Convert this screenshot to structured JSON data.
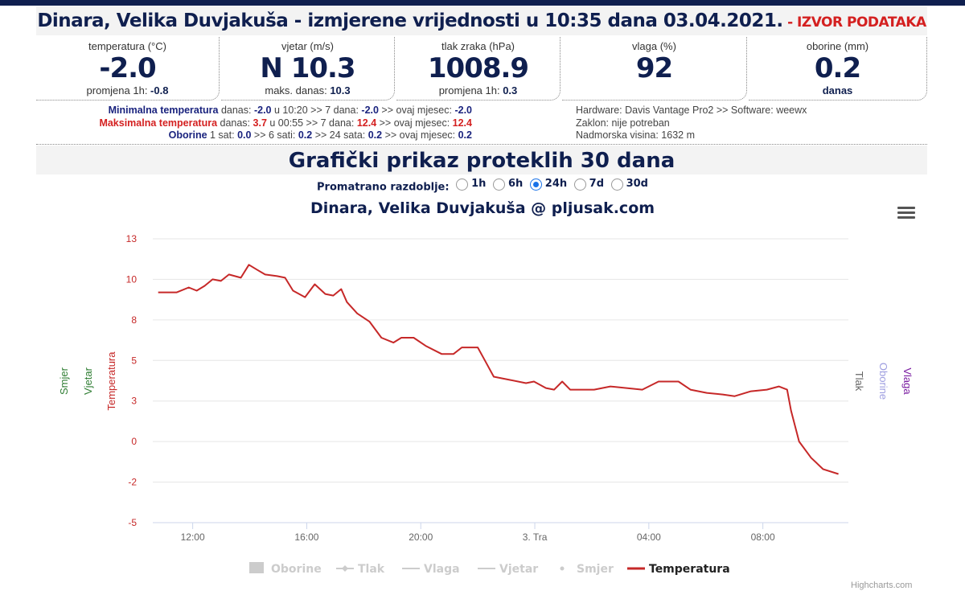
{
  "header": {
    "station": "Dinara, Velika Duvjakuša",
    "measured": " - izmjerene vrijednosti u 10:35 dana 03.04.2021.",
    "source_link": " - IZVOR PODATAKA"
  },
  "boxes": [
    {
      "label": "temperatura (°C)",
      "value": "-2.0",
      "sub_label": "promjena 1h: ",
      "sub_value": "-0.8"
    },
    {
      "label": "vjetar (m/s)",
      "value": "N 10.3",
      "sub_label": "maks. danas: ",
      "sub_value": "10.3"
    },
    {
      "label": "tlak zraka (hPa)",
      "value": "1008.9",
      "sub_label": "promjena 1h: ",
      "sub_value": "0.3"
    },
    {
      "label": "vlaga (%)",
      "value": "92",
      "sub_label": "",
      "sub_value": ""
    },
    {
      "label": "oborine (mm)",
      "value": "0.2",
      "sub_label": "",
      "sub_value": "danas"
    }
  ],
  "stats": {
    "min": {
      "label": "Minimalna temperatura",
      "t1": " danas: ",
      "v1": "-2.0",
      "t2": " u 10:20 >> 7 dana: ",
      "v2": "-2.0",
      "t3": " >> ovaj mjesec: ",
      "v3": "-2.0"
    },
    "max": {
      "label": "Maksimalna temperatura",
      "t1": " danas: ",
      "v1": "3.7",
      "t2": " u 00:55 >> 7 dana: ",
      "v2": "12.4",
      "t3": " >> ovaj mjesec: ",
      "v3": "12.4"
    },
    "rain": {
      "label": "Oborine",
      "t1": " 1 sat: ",
      "v1": "0.0",
      "t2": " >> 6 sati: ",
      "v2": "0.2",
      "t3": " >> 24 sata: ",
      "v3": "0.2",
      "t4": " >> ovaj mjesec: ",
      "v4": "0.2"
    }
  },
  "hardware": [
    "Hardware: Davis Vantage Pro2 >> Software: weewx",
    "Zaklon: nije potreban",
    "Nadmorska visina: 1632 m"
  ],
  "section_title": "Grafički prikaz proteklih 30 dana",
  "period": {
    "label": "Promatrano razdoblje:",
    "options": [
      "1h",
      "6h",
      "24h",
      "7d",
      "30d"
    ],
    "selected": "24h"
  },
  "menu_icon": "hamburger-menu-icon",
  "credits": "Highcharts.com",
  "colors": {
    "navy": "#0f1f4f",
    "red": "#d42020",
    "temp": "#c62828",
    "green": "#2e7d32",
    "purple": "#7b1fa2",
    "lavender": "#9e9ee0",
    "gray": "#666666"
  },
  "chart_data": {
    "type": "line",
    "title": "Dinara, Velika Duvjakuša @ pljusak.com",
    "x_unit": "hours since 02.04. 00:00",
    "x_ticks": [
      {
        "v": 12,
        "label": "12:00"
      },
      {
        "v": 16,
        "label": "16:00"
      },
      {
        "v": 20,
        "label": "20:00"
      },
      {
        "v": 24,
        "label": "3. Tra"
      },
      {
        "v": 28,
        "label": "04:00"
      },
      {
        "v": 32,
        "label": "08:00"
      }
    ],
    "xlim": [
      10.6,
      35.0
    ],
    "ylim": [
      -5,
      12.5
    ],
    "y_ticks": [
      {
        "v": 12.5,
        "label": "13"
      },
      {
        "v": 10,
        "label": "10"
      },
      {
        "v": 7.5,
        "label": "8"
      },
      {
        "v": 5,
        "label": "5"
      },
      {
        "v": 2.5,
        "label": "3"
      },
      {
        "v": 0,
        "label": "0"
      },
      {
        "v": -2.5,
        "label": "-2"
      },
      {
        "v": -5,
        "label": "-5"
      }
    ],
    "left_axis_titles": [
      "Smjer",
      "Vjetar",
      "Temperatura"
    ],
    "right_axis_titles": [
      "Tlak",
      "Oborine",
      "Vlaga"
    ],
    "legend": [
      "Oborine",
      "Tlak",
      "Vlaga",
      "Vjetar",
      "Smjer",
      "Temperatura"
    ],
    "legend_placement": "bottom-center",
    "series": [
      {
        "name": "Temperatura",
        "x": [
          10.79,
          11.44,
          11.86,
          12.14,
          12.42,
          12.7,
          12.99,
          13.27,
          13.69,
          13.97,
          14.25,
          14.54,
          14.96,
          15.24,
          15.52,
          15.94,
          16.28,
          16.65,
          16.93,
          17.21,
          17.41,
          17.77,
          18.2,
          18.62,
          19.04,
          19.32,
          19.75,
          20.17,
          20.73,
          21.15,
          21.44,
          22.0,
          22.28,
          22.56,
          23.13,
          23.69,
          23.97,
          24.39,
          24.68,
          24.96,
          25.24,
          26.08,
          26.65,
          27.77,
          28.34,
          29.04,
          29.46,
          30.03,
          30.59,
          31.01,
          31.58,
          32.14,
          32.56,
          32.85,
          32.99,
          33.27,
          33.69,
          34.11,
          34.65
        ],
        "values": [
          9.2,
          9.2,
          9.5,
          9.3,
          9.6,
          10.0,
          9.9,
          10.3,
          10.1,
          10.9,
          10.6,
          10.3,
          10.2,
          10.1,
          9.3,
          8.9,
          9.7,
          9.1,
          9.0,
          9.4,
          8.6,
          7.9,
          7.4,
          6.4,
          6.1,
          6.4,
          6.4,
          5.9,
          5.4,
          5.4,
          5.8,
          5.8,
          4.9,
          4.0,
          3.8,
          3.6,
          3.7,
          3.3,
          3.2,
          3.7,
          3.2,
          3.2,
          3.4,
          3.2,
          3.7,
          3.7,
          3.2,
          3.0,
          2.9,
          2.8,
          3.1,
          3.2,
          3.4,
          3.2,
          1.9,
          0.0,
          -1.0,
          -1.7,
          -2.0
        ]
      }
    ]
  }
}
